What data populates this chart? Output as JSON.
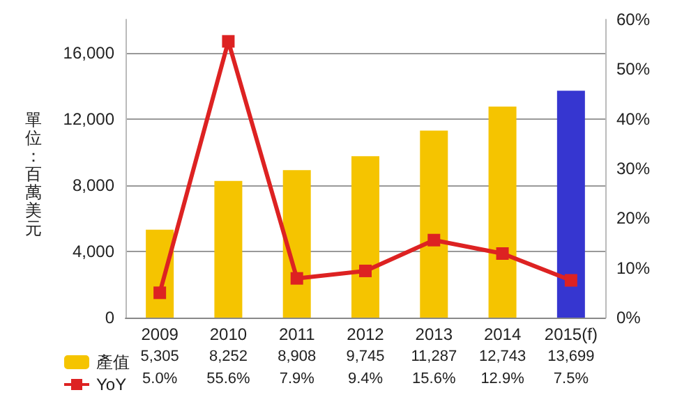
{
  "chart_data": {
    "type": "bar",
    "ylabel": "單位：百萬美元",
    "categories": [
      "2009",
      "2010",
      "2011",
      "2012",
      "2013",
      "2014",
      "2015(f)"
    ],
    "series": [
      {
        "name": "產值",
        "color": "#f5c400",
        "colors": [
          "#f5c400",
          "#f5c400",
          "#f5c400",
          "#f5c400",
          "#f5c400",
          "#f5c400",
          "#3636d0"
        ],
        "values": [
          5305,
          8252,
          8908,
          9745,
          11287,
          12743,
          13699
        ],
        "value_labels": [
          "5,305",
          "8,252",
          "8,908",
          "9,745",
          "11,287",
          "12,743",
          "13,699"
        ]
      },
      {
        "name": "YoY",
        "type": "line",
        "axis": "y2",
        "color": "#dd2222",
        "values": [
          5.0,
          55.6,
          7.9,
          9.4,
          15.6,
          12.9,
          7.5
        ],
        "value_labels": [
          "5.0%",
          "55.6%",
          "7.9%",
          "9.4%",
          "15.6%",
          "12.9%",
          "7.5%"
        ]
      }
    ],
    "ylim": [
      0,
      18000
    ],
    "yticks": [
      0,
      {
        "value": 4000,
        "label": "4,000"
      },
      {
        "value": 8000,
        "label": "8,000"
      },
      {
        "value": 12000,
        "label": "12,000"
      },
      {
        "value": 16000,
        "label": "16,000"
      }
    ],
    "y2lim": [
      0,
      60
    ],
    "y2ticks": [
      {
        "value": 0,
        "label": "0%"
      },
      {
        "value": 10,
        "label": "10%"
      },
      {
        "value": 20,
        "label": "20%"
      },
      {
        "value": 30,
        "label": "30%"
      },
      {
        "value": 40,
        "label": "40%"
      },
      {
        "value": 50,
        "label": "50%"
      },
      {
        "value": 60,
        "label": "60%"
      }
    ],
    "grid": "y",
    "legend": "bottom",
    "marker": "square"
  }
}
